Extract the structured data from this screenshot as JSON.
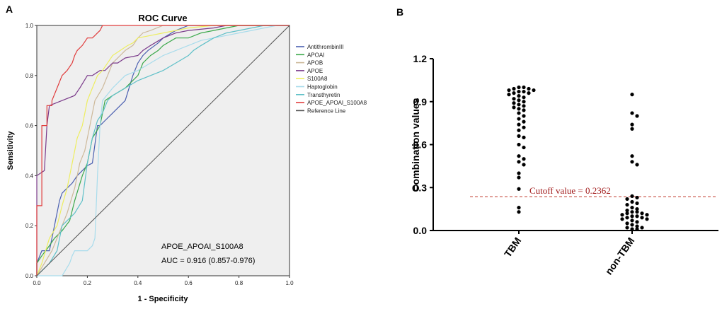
{
  "chart_data": [
    {
      "panel": "A",
      "type": "line",
      "title": "ROC Curve",
      "xlabel": "1 - Specificity",
      "ylabel": "Sensitivity",
      "xlim": [
        0,
        1
      ],
      "ylim": [
        0,
        1
      ],
      "xticks": [
        "0.0",
        "0.2",
        "0.4",
        "0.6",
        "0.8",
        "1.0"
      ],
      "yticks": [
        "0.0",
        "0.2",
        "0.4",
        "0.6",
        "0.8",
        "1.0"
      ],
      "annotation_line1": "APOE_APOAI_S100A8",
      "annotation_line2": "AUC = 0.916 (0.857-0.976)",
      "series": [
        {
          "name": "AntithrombinIII",
          "color": "#4a5fb0",
          "x": [
            0,
            0,
            0.02,
            0.05,
            0.09,
            0.1,
            0.12,
            0.14,
            0.16,
            0.19,
            0.2,
            0.22,
            0.24,
            0.25,
            0.27,
            0.3,
            0.33,
            0.35,
            0.38,
            0.4,
            0.42,
            0.44,
            0.48,
            0.5,
            0.55,
            0.6,
            0.65,
            0.75,
            0.85,
            1.0
          ],
          "y": [
            0,
            0.05,
            0.1,
            0.1,
            0.3,
            0.33,
            0.35,
            0.37,
            0.4,
            0.43,
            0.44,
            0.45,
            0.6,
            0.6,
            0.62,
            0.65,
            0.68,
            0.7,
            0.8,
            0.85,
            0.88,
            0.9,
            0.93,
            0.95,
            0.98,
            1.0,
            1.0,
            1.0,
            1.0,
            1.0
          ]
        },
        {
          "name": "APOAI",
          "color": "#3aa84a",
          "x": [
            0,
            0,
            0.02,
            0.05,
            0.07,
            0.1,
            0.13,
            0.15,
            0.18,
            0.2,
            0.22,
            0.25,
            0.27,
            0.3,
            0.35,
            0.4,
            0.42,
            0.45,
            0.48,
            0.5,
            0.55,
            0.6,
            0.65,
            0.7,
            0.75,
            0.8,
            0.9,
            1.0
          ],
          "y": [
            0,
            0.05,
            0.08,
            0.12,
            0.15,
            0.18,
            0.22,
            0.3,
            0.4,
            0.45,
            0.55,
            0.6,
            0.7,
            0.72,
            0.75,
            0.8,
            0.85,
            0.88,
            0.9,
            0.92,
            0.95,
            0.95,
            0.97,
            0.98,
            0.99,
            1.0,
            1.0,
            1.0
          ]
        },
        {
          "name": "APOB",
          "color": "#cdb99a",
          "x": [
            0,
            0.03,
            0.06,
            0.08,
            0.1,
            0.12,
            0.15,
            0.17,
            0.19,
            0.21,
            0.23,
            0.26,
            0.28,
            0.3,
            0.33,
            0.35,
            0.38,
            0.4,
            0.42,
            0.45,
            0.5,
            0.55,
            0.6,
            0.7,
            0.8,
            1.0
          ],
          "y": [
            0,
            0.05,
            0.1,
            0.15,
            0.2,
            0.25,
            0.35,
            0.45,
            0.5,
            0.6,
            0.7,
            0.75,
            0.8,
            0.85,
            0.88,
            0.9,
            0.92,
            0.95,
            0.97,
            0.98,
            1.0,
            1.0,
            1.0,
            1.0,
            1.0,
            1.0
          ]
        },
        {
          "name": "APOE",
          "color": "#7a3a8a",
          "x": [
            0,
            0,
            0.03,
            0.04,
            0.05,
            0.1,
            0.15,
            0.17,
            0.2,
            0.22,
            0.25,
            0.27,
            0.3,
            0.32,
            0.35,
            0.4,
            0.42,
            0.45,
            0.5,
            0.55,
            0.6,
            0.7,
            0.75,
            0.8,
            0.9,
            1.0
          ],
          "y": [
            0,
            0.4,
            0.42,
            0.6,
            0.68,
            0.7,
            0.72,
            0.75,
            0.8,
            0.8,
            0.82,
            0.82,
            0.85,
            0.85,
            0.87,
            0.88,
            0.9,
            0.92,
            0.95,
            0.97,
            0.98,
            0.99,
            1.0,
            1.0,
            1.0,
            1.0
          ]
        },
        {
          "name": "S100A8",
          "color": "#eeee60",
          "x": [
            0,
            0.02,
            0.05,
            0.08,
            0.1,
            0.12,
            0.14,
            0.16,
            0.18,
            0.2,
            0.22,
            0.24,
            0.26,
            0.28,
            0.3,
            0.33,
            0.36,
            0.38,
            0.4,
            0.45,
            0.5,
            0.55,
            0.6,
            0.7,
            0.8,
            0.9,
            1.0
          ],
          "y": [
            0,
            0.05,
            0.15,
            0.2,
            0.28,
            0.35,
            0.45,
            0.55,
            0.6,
            0.7,
            0.75,
            0.8,
            0.82,
            0.85,
            0.88,
            0.9,
            0.92,
            0.93,
            0.95,
            0.96,
            0.97,
            0.98,
            0.99,
            1.0,
            1.0,
            1.0,
            1.0
          ]
        },
        {
          "name": "Haptoglobin",
          "color": "#a8dcec",
          "x": [
            0,
            0.1,
            0.13,
            0.14,
            0.15,
            0.2,
            0.22,
            0.23,
            0.24,
            0.25,
            0.26,
            0.3,
            0.35,
            0.4,
            0.45,
            0.5,
            0.55,
            0.6,
            0.65,
            0.7,
            0.75,
            0.8,
            0.85,
            0.9,
            0.95,
            1.0
          ],
          "y": [
            0,
            0,
            0.05,
            0.08,
            0.1,
            0.1,
            0.12,
            0.15,
            0.4,
            0.6,
            0.7,
            0.75,
            0.8,
            0.82,
            0.85,
            0.88,
            0.9,
            0.92,
            0.94,
            0.95,
            0.96,
            0.97,
            0.98,
            0.99,
            1.0,
            1.0
          ]
        },
        {
          "name": "Transthyretin",
          "color": "#5fc0c8",
          "x": [
            0,
            0.05,
            0.08,
            0.1,
            0.12,
            0.15,
            0.18,
            0.2,
            0.22,
            0.24,
            0.26,
            0.28,
            0.3,
            0.35,
            0.4,
            0.45,
            0.5,
            0.55,
            0.6,
            0.62,
            0.65,
            0.7,
            0.75,
            0.8,
            0.9,
            1.0
          ],
          "y": [
            0,
            0.05,
            0.1,
            0.2,
            0.22,
            0.25,
            0.3,
            0.45,
            0.55,
            0.62,
            0.65,
            0.7,
            0.72,
            0.75,
            0.78,
            0.8,
            0.82,
            0.85,
            0.88,
            0.9,
            0.92,
            0.95,
            0.97,
            0.98,
            1.0,
            1.0
          ]
        },
        {
          "name": "APOE_APOAI_S100A8",
          "color": "#e03c3c",
          "x": [
            0,
            0,
            0.02,
            0.02,
            0.04,
            0.04,
            0.06,
            0.06,
            0.08,
            0.1,
            0.12,
            0.14,
            0.15,
            0.16,
            0.18,
            0.2,
            0.22,
            0.23,
            0.24,
            0.25,
            0.26,
            0.3,
            0.35,
            0.4,
            0.5,
            0.6,
            1.0
          ],
          "y": [
            0,
            0.28,
            0.28,
            0.6,
            0.6,
            0.68,
            0.68,
            0.7,
            0.75,
            0.8,
            0.82,
            0.85,
            0.88,
            0.9,
            0.92,
            0.95,
            0.95,
            0.96,
            0.97,
            0.98,
            1.0,
            1.0,
            1.0,
            1.0,
            1.0,
            1.0,
            1.0
          ]
        },
        {
          "name": "Reference Line",
          "color": "#555555",
          "x": [
            0,
            1
          ],
          "y": [
            0,
            1
          ]
        }
      ]
    },
    {
      "panel": "B",
      "type": "scatter",
      "xlabel": "",
      "ylabel": "Combination values",
      "categories": [
        "TBM",
        "non-TBM"
      ],
      "ylim": [
        0,
        1.2
      ],
      "yticks": [
        "0.0",
        "0.3",
        "0.6",
        "0.9",
        "1.2"
      ],
      "cutoff": 0.2362,
      "cutoff_label": "Cutoff value = 0.2362",
      "groups": [
        {
          "name": "TBM",
          "values": [
            1.0,
            1.0,
            0.99,
            0.99,
            0.98,
            0.98,
            0.97,
            0.97,
            0.96,
            0.96,
            0.95,
            0.94,
            0.93,
            0.92,
            0.91,
            0.9,
            0.89,
            0.88,
            0.87,
            0.86,
            0.85,
            0.84,
            0.82,
            0.8,
            0.78,
            0.76,
            0.74,
            0.72,
            0.7,
            0.66,
            0.65,
            0.6,
            0.58,
            0.52,
            0.5,
            0.48,
            0.46,
            0.4,
            0.37,
            0.29,
            0.16,
            0.13
          ]
        },
        {
          "name": "non-TBM",
          "values": [
            0.95,
            0.82,
            0.8,
            0.74,
            0.71,
            0.52,
            0.48,
            0.46,
            0.24,
            0.23,
            0.22,
            0.2,
            0.19,
            0.18,
            0.16,
            0.15,
            0.14,
            0.13,
            0.13,
            0.12,
            0.12,
            0.11,
            0.11,
            0.1,
            0.1,
            0.09,
            0.09,
            0.08,
            0.08,
            0.07,
            0.06,
            0.05,
            0.04,
            0.03,
            0.02,
            0.02,
            0.01,
            0.01
          ]
        }
      ]
    }
  ],
  "labels": {
    "panel_a": "A",
    "panel_b": "B"
  }
}
